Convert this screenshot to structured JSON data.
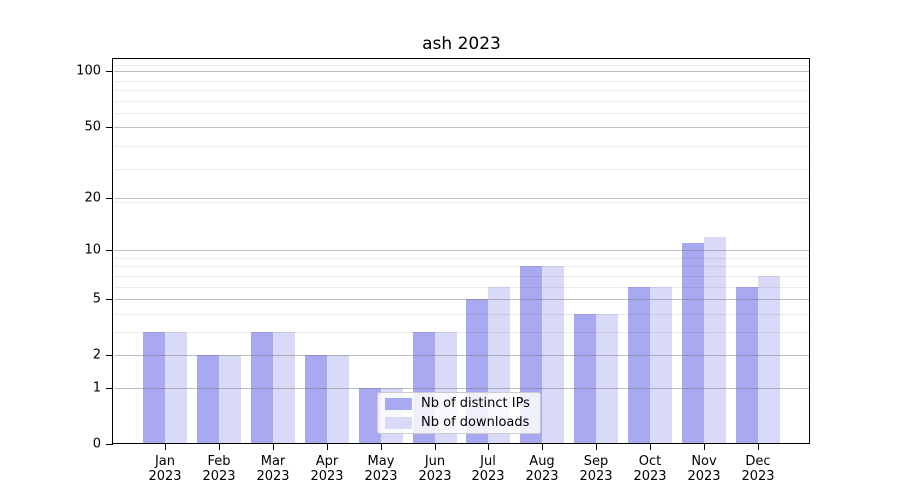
{
  "chart_data": {
    "type": "bar",
    "title": "ash 2023",
    "categories": [
      "Jan\n2023",
      "Feb\n2023",
      "Mar\n2023",
      "Apr\n2023",
      "May\n2023",
      "Jun\n2023",
      "Jul\n2023",
      "Aug\n2023",
      "Sep\n2023",
      "Oct\n2023",
      "Nov\n2023",
      "Dec\n2023"
    ],
    "series": [
      {
        "name": "Nb of distinct IPs",
        "color": "#a9a9f1",
        "values": [
          3,
          2,
          3,
          2,
          1,
          3,
          5,
          8,
          4,
          6,
          11,
          6
        ]
      },
      {
        "name": "Nb of downloads",
        "color": "#d9d9f8",
        "values": [
          3,
          2,
          3,
          2,
          1,
          3,
          6,
          8,
          4,
          6,
          12,
          7
        ]
      }
    ],
    "xlabel": "",
    "ylabel": "",
    "yticks": [
      0,
      1,
      2,
      5,
      10,
      20,
      50,
      100
    ],
    "yscale": "log10(1+value)",
    "ylim": [
      0,
      117
    ],
    "grid": true,
    "legend_position": "lower center"
  },
  "colors": {
    "background": "#ffffff",
    "major_grid": "#c6c6c6",
    "minor_grid": "#ececec",
    "spine": "#000000",
    "text": "#000000"
  }
}
